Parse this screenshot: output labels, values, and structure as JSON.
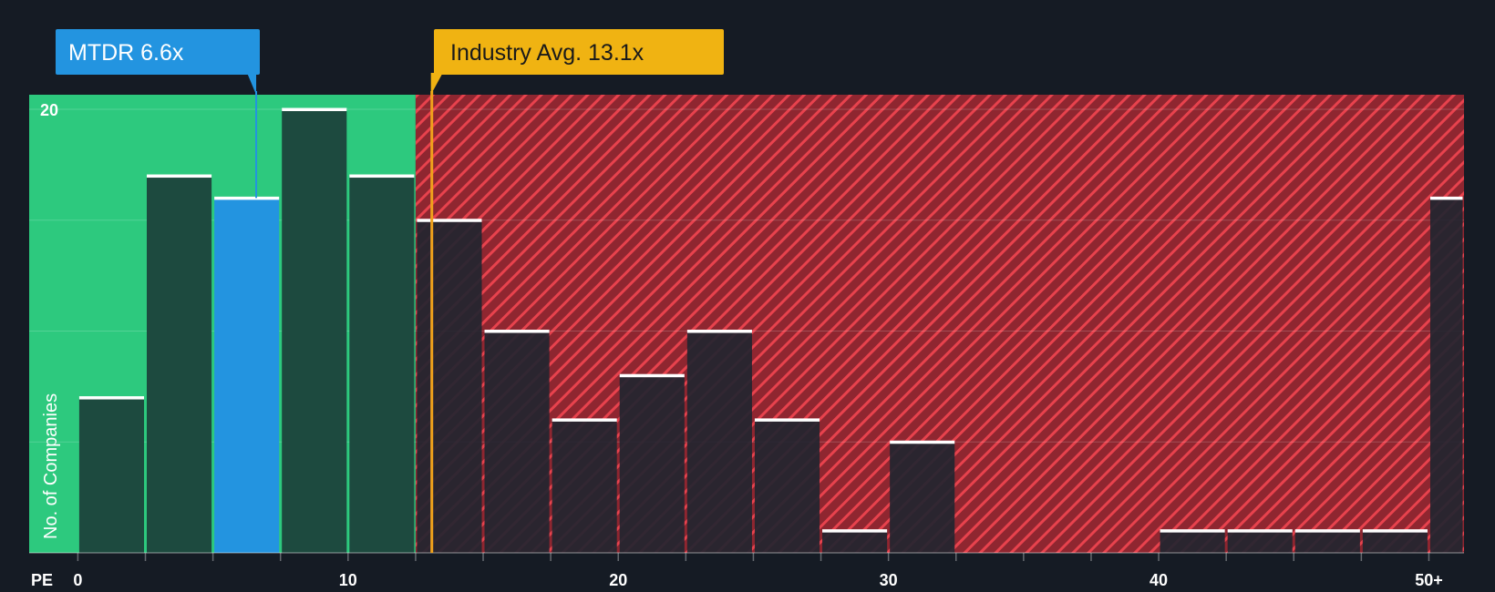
{
  "chart_data": {
    "type": "bar",
    "title": "",
    "xlabel": "PE",
    "ylabel": "No. of Companies",
    "x_bins": [
      {
        "from": 0,
        "to": 2.5,
        "value": 7
      },
      {
        "from": 2.5,
        "to": 5,
        "value": 17
      },
      {
        "from": 5,
        "to": 7.5,
        "value": 16
      },
      {
        "from": 7.5,
        "to": 10,
        "value": 20
      },
      {
        "from": 10,
        "to": 12.5,
        "value": 17
      },
      {
        "from": 12.5,
        "to": 15,
        "value": 15
      },
      {
        "from": 15,
        "to": 17.5,
        "value": 10
      },
      {
        "from": 17.5,
        "to": 20,
        "value": 6
      },
      {
        "from": 20,
        "to": 22.5,
        "value": 8
      },
      {
        "from": 22.5,
        "to": 25,
        "value": 10
      },
      {
        "from": 25,
        "to": 27.5,
        "value": 6
      },
      {
        "from": 27.5,
        "to": 30,
        "value": 1
      },
      {
        "from": 30,
        "to": 32.5,
        "value": 5
      },
      {
        "from": 32.5,
        "to": 35,
        "value": 0
      },
      {
        "from": 35,
        "to": 37.5,
        "value": 0
      },
      {
        "from": 37.5,
        "to": 40,
        "value": 0
      },
      {
        "from": 40,
        "to": 42.5,
        "value": 1
      },
      {
        "from": 42.5,
        "to": 45,
        "value": 1
      },
      {
        "from": 45,
        "to": 47.5,
        "value": 1
      },
      {
        "from": 47.5,
        "to": 50,
        "value": 1
      },
      {
        "from": 50,
        "to": 51.3,
        "value": 16
      }
    ],
    "xlim": [
      -4.5,
      51.3
    ],
    "ylim": [
      0,
      20.7
    ],
    "y_gridlines": [
      5,
      10,
      15,
      20
    ],
    "y_tick_labels": [
      {
        "value": 20,
        "label": "20"
      }
    ],
    "x_ticks": [
      0,
      2.5,
      5,
      7.5,
      10,
      12.5,
      15,
      17.5,
      20,
      22.5,
      25,
      27.5,
      30,
      32.5,
      35,
      37.5,
      40,
      42.5,
      45,
      47.5,
      50
    ],
    "x_tick_labels": [
      {
        "value": 0,
        "label": "0"
      },
      {
        "value": 10,
        "label": "10"
      },
      {
        "value": 20,
        "label": "20"
      },
      {
        "value": 30,
        "label": "30"
      },
      {
        "value": 40,
        "label": "40"
      },
      {
        "value": 50,
        "label": "50+"
      }
    ],
    "company": {
      "ticker": "MTDR",
      "pe": 6.6,
      "label": "MTDR 6.6x",
      "bin_index": 2
    },
    "industry": {
      "pe": 13.1,
      "label": "Industry Avg. 13.1x"
    },
    "fair_zone": {
      "from": -1.8,
      "to": 12.5
    },
    "colors": {
      "background": "#151b24",
      "fair_zone": "#2dc97e",
      "overvalued_zone": "#8f2630",
      "hatch_line": "#e8424d",
      "bar_in_fair": "#1d4a3f",
      "bar_in_over": "#222530",
      "company_bar": "#2394e0",
      "bar_cap": "#ffffff",
      "company_callout": "#2394e0",
      "industry_callout": "#f0b312",
      "industry_line": "#f0a21b"
    }
  }
}
